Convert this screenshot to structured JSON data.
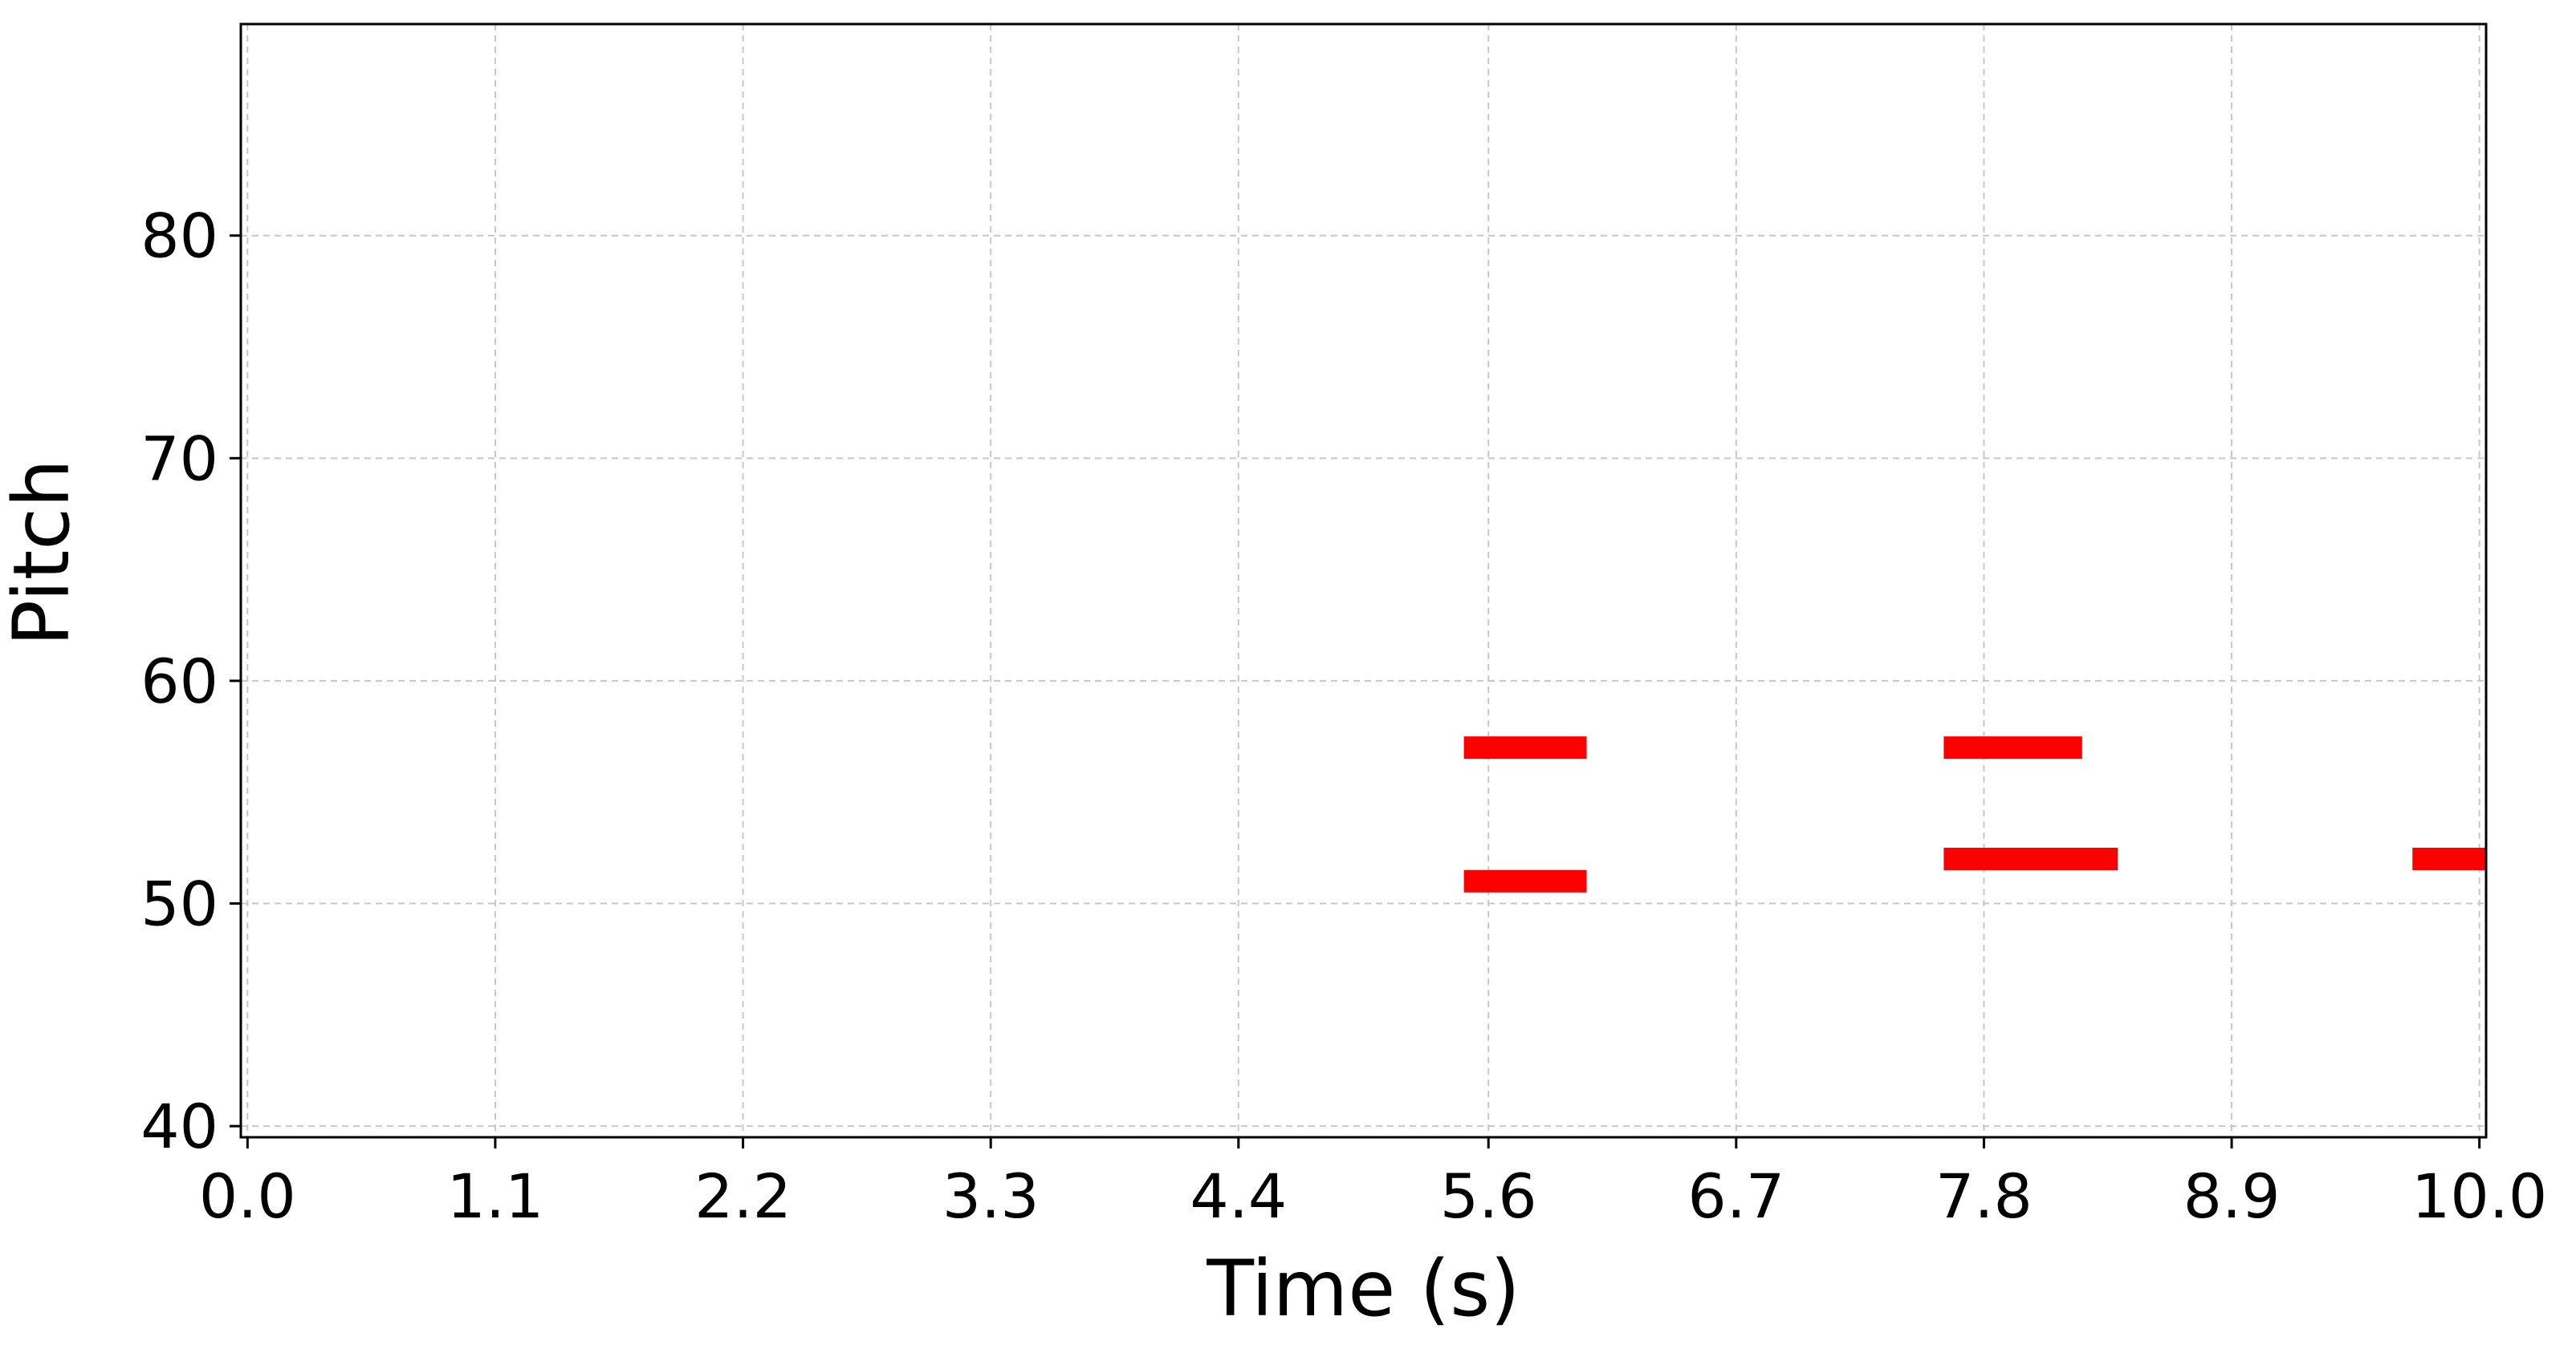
{
  "chart_data": {
    "type": "piano-roll",
    "title": "",
    "xlabel": "Time (s)",
    "ylabel": "Pitch",
    "xlim": [
      -0.03,
      10.03
    ],
    "ylim": [
      39.5,
      89.5
    ],
    "x_ticks": [
      "0.0",
      "1.1",
      "2.2",
      "3.3",
      "4.4",
      "5.6",
      "6.7",
      "7.8",
      "8.9",
      "10.0"
    ],
    "x_tick_values": [
      0.0,
      1.11,
      2.22,
      3.33,
      4.44,
      5.56,
      6.67,
      7.78,
      8.89,
      10.0
    ],
    "y_ticks": [
      "40",
      "50",
      "60",
      "70",
      "80"
    ],
    "y_tick_values": [
      40,
      50,
      60,
      70,
      80
    ],
    "grid": true,
    "note_color": "#ff0000",
    "grid_color": "#c8c8c8",
    "notes": [
      {
        "start": 5.45,
        "end": 6.0,
        "pitch": 57
      },
      {
        "start": 5.45,
        "end": 6.0,
        "pitch": 51
      },
      {
        "start": 7.6,
        "end": 8.22,
        "pitch": 57
      },
      {
        "start": 7.6,
        "end": 8.38,
        "pitch": 52
      },
      {
        "start": 9.7,
        "end": 10.03,
        "pitch": 52
      }
    ]
  }
}
